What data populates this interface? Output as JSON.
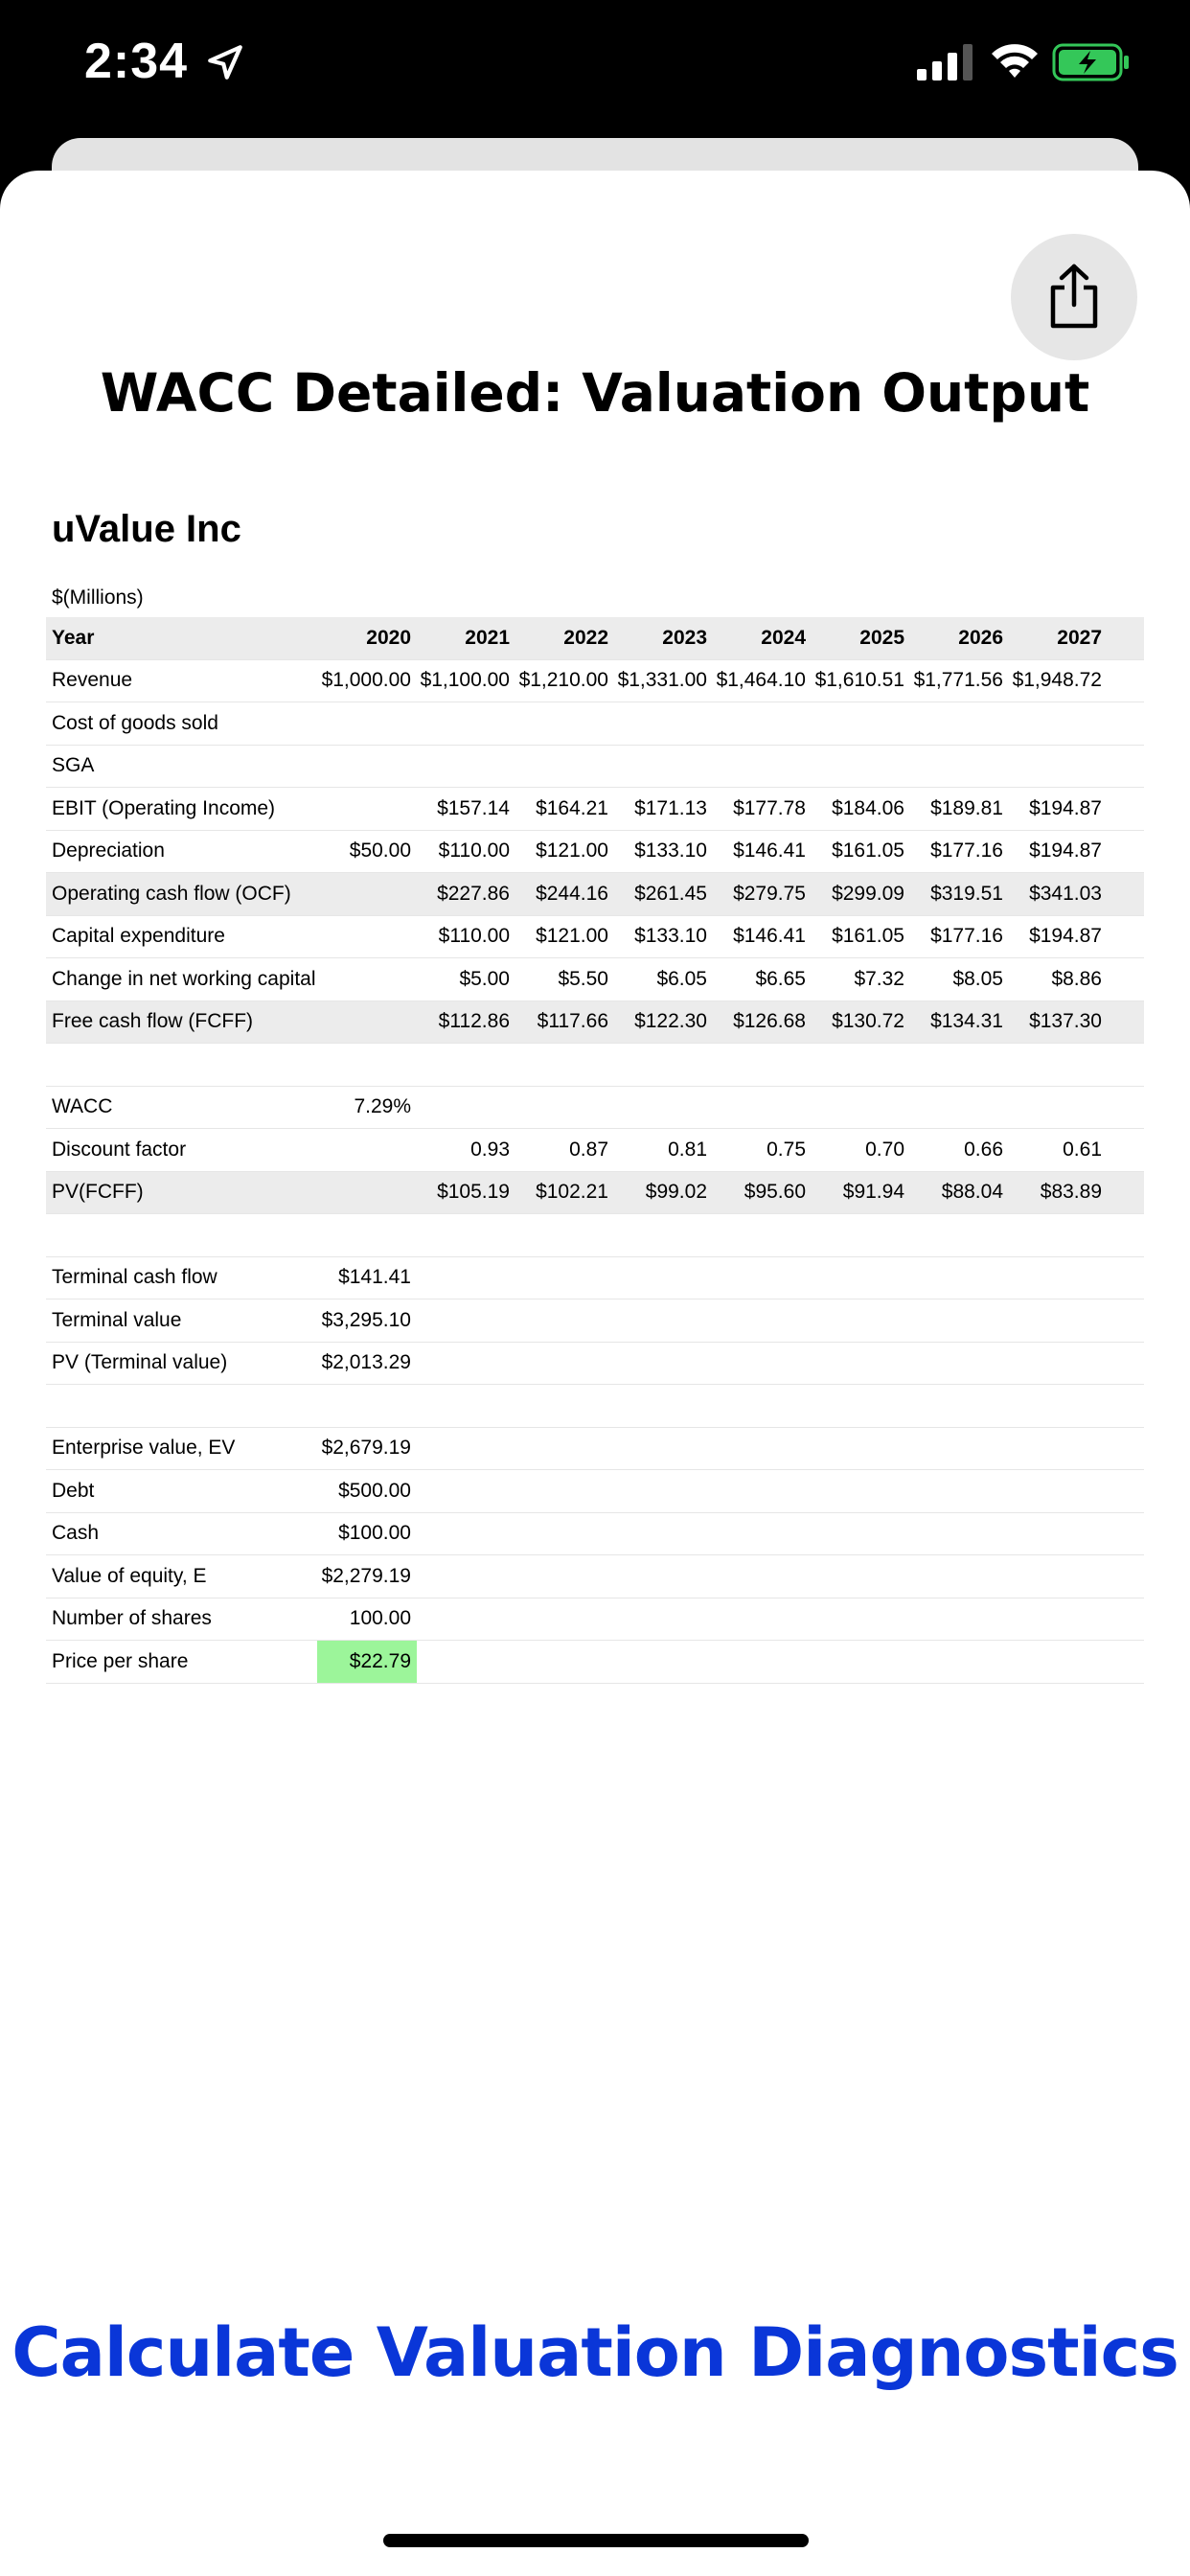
{
  "status_bar": {
    "time": "2:34"
  },
  "page": {
    "title": "WACC Detailed: Valuation Output"
  },
  "report": {
    "company": "uValue Inc",
    "units": "$(Millions)"
  },
  "table": {
    "year_label": "Year",
    "years": [
      "2020",
      "2021",
      "2022",
      "2023",
      "2024",
      "2025",
      "2026",
      "2027"
    ],
    "rows": [
      {
        "label": "Revenue",
        "values": [
          "$1,000.00",
          "$1,100.00",
          "$1,210.00",
          "$1,331.00",
          "$1,464.10",
          "$1,610.51",
          "$1,771.56",
          "$1,948.72"
        ]
      },
      {
        "label": "Cost of goods sold",
        "values": [
          "",
          "",
          "",
          "",
          "",
          "",
          "",
          ""
        ]
      },
      {
        "label": "SGA",
        "values": [
          "",
          "",
          "",
          "",
          "",
          "",
          "",
          ""
        ]
      },
      {
        "label": "EBIT (Operating Income)",
        "values": [
          "",
          "$157.14",
          "$164.21",
          "$171.13",
          "$177.78",
          "$184.06",
          "$189.81",
          "$194.87"
        ]
      },
      {
        "label": "Depreciation",
        "values": [
          "$50.00",
          "$110.00",
          "$121.00",
          "$133.10",
          "$146.41",
          "$161.05",
          "$177.16",
          "$194.87"
        ]
      },
      {
        "label": "Operating cash flow (OCF)",
        "values": [
          "",
          "$227.86",
          "$244.16",
          "$261.45",
          "$279.75",
          "$299.09",
          "$319.51",
          "$341.03"
        ]
      },
      {
        "label": "Capital expenditure",
        "values": [
          "",
          "$110.00",
          "$121.00",
          "$133.10",
          "$146.41",
          "$161.05",
          "$177.16",
          "$194.87"
        ]
      },
      {
        "label": "Change in net working capital",
        "values": [
          "",
          "$5.00",
          "$5.50",
          "$6.05",
          "$6.65",
          "$7.32",
          "$8.05",
          "$8.86"
        ]
      },
      {
        "label": "Free cash flow (FCFF)",
        "values": [
          "",
          "$112.86",
          "$117.66",
          "$122.30",
          "$126.68",
          "$130.72",
          "$134.31",
          "$137.30"
        ]
      },
      {
        "label": "",
        "values": [
          "",
          "",
          "",
          "",
          "",
          "",
          "",
          ""
        ]
      },
      {
        "label": "WACC",
        "values": [
          "7.29%",
          "",
          "",
          "",
          "",
          "",
          "",
          ""
        ]
      },
      {
        "label": "Discount factor",
        "values": [
          "",
          "0.93",
          "0.87",
          "0.81",
          "0.75",
          "0.70",
          "0.66",
          "0.61"
        ]
      },
      {
        "label": "PV(FCFF)",
        "values": [
          "",
          "$105.19",
          "$102.21",
          "$99.02",
          "$95.60",
          "$91.94",
          "$88.04",
          "$83.89"
        ]
      },
      {
        "label": "",
        "values": [
          "",
          "",
          "",
          "",
          "",
          "",
          "",
          ""
        ]
      },
      {
        "label": "Terminal cash flow",
        "values": [
          "$141.41",
          "",
          "",
          "",
          "",
          "",
          "",
          ""
        ]
      },
      {
        "label": "Terminal value",
        "values": [
          "$3,295.10",
          "",
          "",
          "",
          "",
          "",
          "",
          ""
        ]
      },
      {
        "label": "PV (Terminal value)",
        "values": [
          "$2,013.29",
          "",
          "",
          "",
          "",
          "",
          "",
          ""
        ]
      },
      {
        "label": "",
        "values": [
          "",
          "",
          "",
          "",
          "",
          "",
          "",
          ""
        ]
      },
      {
        "label": "Enterprise value, EV",
        "values": [
          "$2,679.19",
          "",
          "",
          "",
          "",
          "",
          "",
          ""
        ]
      },
      {
        "label": "Debt",
        "values": [
          "$500.00",
          "",
          "",
          "",
          "",
          "",
          "",
          ""
        ]
      },
      {
        "label": "Cash",
        "values": [
          "$100.00",
          "",
          "",
          "",
          "",
          "",
          "",
          ""
        ]
      },
      {
        "label": "Value of equity, E",
        "values": [
          "$2,279.19",
          "",
          "",
          "",
          "",
          "",
          "",
          ""
        ]
      },
      {
        "label": "Number of shares",
        "values": [
          "100.00",
          "",
          "",
          "",
          "",
          "",
          "",
          ""
        ]
      },
      {
        "label": "Price per share",
        "values": [
          "$22.79",
          "",
          "",
          "",
          "",
          "",
          "",
          ""
        ]
      }
    ]
  },
  "shaded_rows": [
    "Operating cash flow (OCF)",
    "Free cash flow (FCFF)",
    "PV(FCFF)"
  ],
  "highlight_label": "Price per share",
  "colors": {
    "highlight": "#9cf59a",
    "cta": "#0a36d8",
    "battery": "#34c759"
  },
  "actions": {
    "calculate": "Calculate Valuation Diagnostics"
  },
  "icons": {
    "share": "share-icon",
    "location": "location-arrow-icon",
    "signal": "cellular-signal-icon",
    "wifi": "wifi-icon",
    "battery": "battery-charging-icon"
  }
}
